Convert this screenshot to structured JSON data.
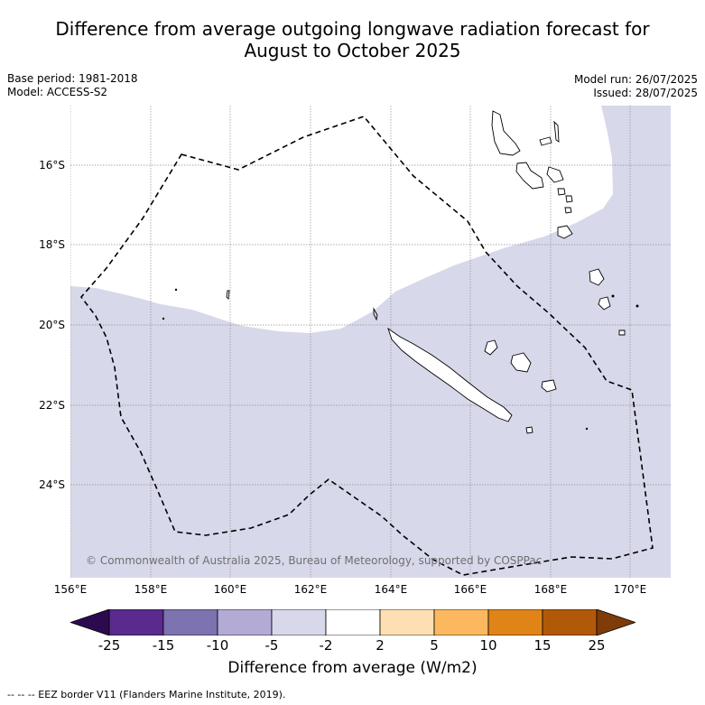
{
  "title_line1": "Difference from average outgoing longwave radiation forecast for",
  "title_line2": "August to October 2025",
  "meta_left": {
    "base_period": "Base period: 1981-2018",
    "model": "Model: ACCESS-S2"
  },
  "meta_right": {
    "model_run": "Model run: 26/07/2025",
    "issued": "Issued: 28/07/2025"
  },
  "axes": {
    "x_ticks": [
      "156°E",
      "158°E",
      "160°E",
      "162°E",
      "164°E",
      "166°E",
      "168°E",
      "170°E"
    ],
    "y_ticks": [
      "16°S",
      "18°S",
      "20°S",
      "22°S",
      "24°S"
    ]
  },
  "map_data": {
    "lon_range": [
      156,
      171
    ],
    "lat_range": [
      -26.3,
      -14.5
    ],
    "grid": true,
    "shading": "-5 to -2 band over most of the domain; -2 to 2 band in the north",
    "regions": [
      "New Caledonia",
      "Loyalty Islands",
      "Vanuatu"
    ]
  },
  "copyright": "© Commonwealth of Australia 2025, Bureau of Meteorology, supported by COSPPac",
  "colorbar": {
    "ticks": [
      "-25",
      "-15",
      "-10",
      "-5",
      "-2",
      "2",
      "5",
      "10",
      "15",
      "25"
    ],
    "colors": [
      "#2d0a4f",
      "#5a2a8c",
      "#7d73b0",
      "#b3abd6",
      "#d8d8eb",
      "#ffffff",
      "#fddfb3",
      "#fcb85e",
      "#e08418",
      "#b25909",
      "#7f3b08"
    ],
    "label": "Difference from average (W/m2)"
  },
  "footer": "--  --  -- EEZ border V11 (Flanders Marine Institute, 2019)."
}
